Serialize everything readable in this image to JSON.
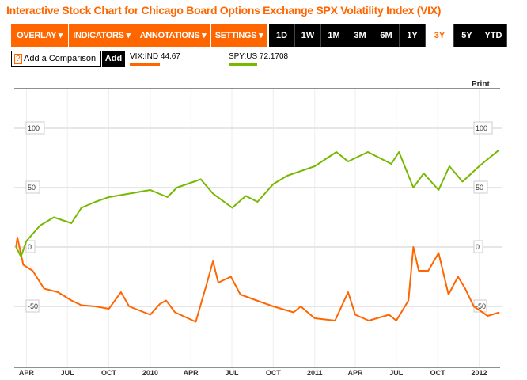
{
  "title": "Interactive Stock Chart for Chicago Board Options Exchange SPX Volatility Index (VIX)",
  "toolbar": {
    "menus": [
      "OVERLAY ▾",
      "INDICATORS ▾",
      "ANNOTATIONS ▾",
      "SETTINGS ▾"
    ],
    "ranges": [
      "1D",
      "1W",
      "1M",
      "3M",
      "6M",
      "1Y",
      "3Y",
      "5Y",
      "YTD"
    ],
    "active_range": "3Y"
  },
  "comparison": {
    "help": "?",
    "placeholder": "Add a Comparison",
    "add_label": "Add"
  },
  "legend": [
    {
      "label": "VIX:IND",
      "value": "44.67",
      "color": "#ff6600"
    },
    {
      "label": "SPY:US",
      "value": "72.1708",
      "color": "#77b800"
    }
  ],
  "print_label": "Print",
  "chart_data": {
    "type": "line",
    "ylim": [
      -100,
      100
    ],
    "yticks": [
      100,
      50,
      0,
      -50
    ],
    "xticks": [
      {
        "label": "APR",
        "date": "2009-04-01"
      },
      {
        "label": "JUL",
        "date": "2009-07-01"
      },
      {
        "label": "OCT",
        "date": "2009-10-01"
      },
      {
        "label": "2010",
        "date": "2010-01-01"
      },
      {
        "label": "APR",
        "date": "2010-04-01"
      },
      {
        "label": "JUL",
        "date": "2010-07-01"
      },
      {
        "label": "OCT",
        "date": "2010-10-01"
      },
      {
        "label": "2011",
        "date": "2011-01-01"
      },
      {
        "label": "APR",
        "date": "2011-04-01"
      },
      {
        "label": "JUL",
        "date": "2011-07-01"
      },
      {
        "label": "OCT",
        "date": "2011-10-01"
      },
      {
        "label": "2012",
        "date": "2012-01-01"
      }
    ],
    "xlim": [
      "2009-03-05",
      "2012-02-20"
    ],
    "grid": true,
    "series": [
      {
        "name": "SPY:US",
        "color": "#77b800",
        "points": [
          [
            "2009-03-09",
            0
          ],
          [
            "2009-03-20",
            -8
          ],
          [
            "2009-04-01",
            5
          ],
          [
            "2009-05-01",
            18
          ],
          [
            "2009-06-01",
            25
          ],
          [
            "2009-07-10",
            20
          ],
          [
            "2009-08-01",
            33
          ],
          [
            "2009-09-01",
            38
          ],
          [
            "2009-10-01",
            42
          ],
          [
            "2009-11-01",
            44
          ],
          [
            "2010-01-01",
            48
          ],
          [
            "2010-02-08",
            42
          ],
          [
            "2010-03-01",
            50
          ],
          [
            "2010-04-23",
            57
          ],
          [
            "2010-05-20",
            45
          ],
          [
            "2010-07-02",
            33
          ],
          [
            "2010-08-01",
            43
          ],
          [
            "2010-08-27",
            38
          ],
          [
            "2010-10-01",
            53
          ],
          [
            "2010-11-01",
            60
          ],
          [
            "2011-01-01",
            68
          ],
          [
            "2011-02-18",
            80
          ],
          [
            "2011-03-16",
            72
          ],
          [
            "2011-04-29",
            80
          ],
          [
            "2011-06-20",
            70
          ],
          [
            "2011-07-07",
            80
          ],
          [
            "2011-08-08",
            50
          ],
          [
            "2011-08-31",
            62
          ],
          [
            "2011-10-03",
            48
          ],
          [
            "2011-10-27",
            68
          ],
          [
            "2011-11-25",
            55
          ],
          [
            "2012-01-01",
            68
          ],
          [
            "2012-02-15",
            82
          ]
        ]
      },
      {
        "name": "VIX:IND",
        "color": "#ff6600",
        "points": [
          [
            "2009-03-09",
            0
          ],
          [
            "2009-03-12",
            8
          ],
          [
            "2009-03-25",
            -15
          ],
          [
            "2009-04-15",
            -20
          ],
          [
            "2009-05-10",
            -35
          ],
          [
            "2009-06-10",
            -38
          ],
          [
            "2009-07-10",
            -45
          ],
          [
            "2009-08-01",
            -49
          ],
          [
            "2009-09-01",
            -50
          ],
          [
            "2009-10-01",
            -52
          ],
          [
            "2009-10-28",
            -38
          ],
          [
            "2009-11-15",
            -50
          ],
          [
            "2010-01-01",
            -57
          ],
          [
            "2010-01-22",
            -48
          ],
          [
            "2010-02-05",
            -45
          ],
          [
            "2010-02-25",
            -55
          ],
          [
            "2010-04-12",
            -63
          ],
          [
            "2010-05-07",
            -30
          ],
          [
            "2010-05-20",
            -12
          ],
          [
            "2010-06-01",
            -30
          ],
          [
            "2010-06-29",
            -25
          ],
          [
            "2010-07-20",
            -40
          ],
          [
            "2010-08-25",
            -45
          ],
          [
            "2010-10-01",
            -50
          ],
          [
            "2010-11-15",
            -55
          ],
          [
            "2010-12-01",
            -50
          ],
          [
            "2011-01-01",
            -60
          ],
          [
            "2011-02-15",
            -62
          ],
          [
            "2011-03-16",
            -38
          ],
          [
            "2011-04-01",
            -57
          ],
          [
            "2011-05-01",
            -62
          ],
          [
            "2011-06-15",
            -57
          ],
          [
            "2011-07-01",
            -62
          ],
          [
            "2011-07-28",
            -45
          ],
          [
            "2011-08-08",
            0
          ],
          [
            "2011-08-20",
            -20
          ],
          [
            "2011-09-10",
            -20
          ],
          [
            "2011-10-03",
            -5
          ],
          [
            "2011-10-25",
            -40
          ],
          [
            "2011-11-15",
            -25
          ],
          [
            "2011-12-01",
            -35
          ],
          [
            "2011-12-20",
            -50
          ],
          [
            "2012-01-20",
            -58
          ],
          [
            "2012-02-15",
            -55
          ]
        ]
      }
    ]
  }
}
